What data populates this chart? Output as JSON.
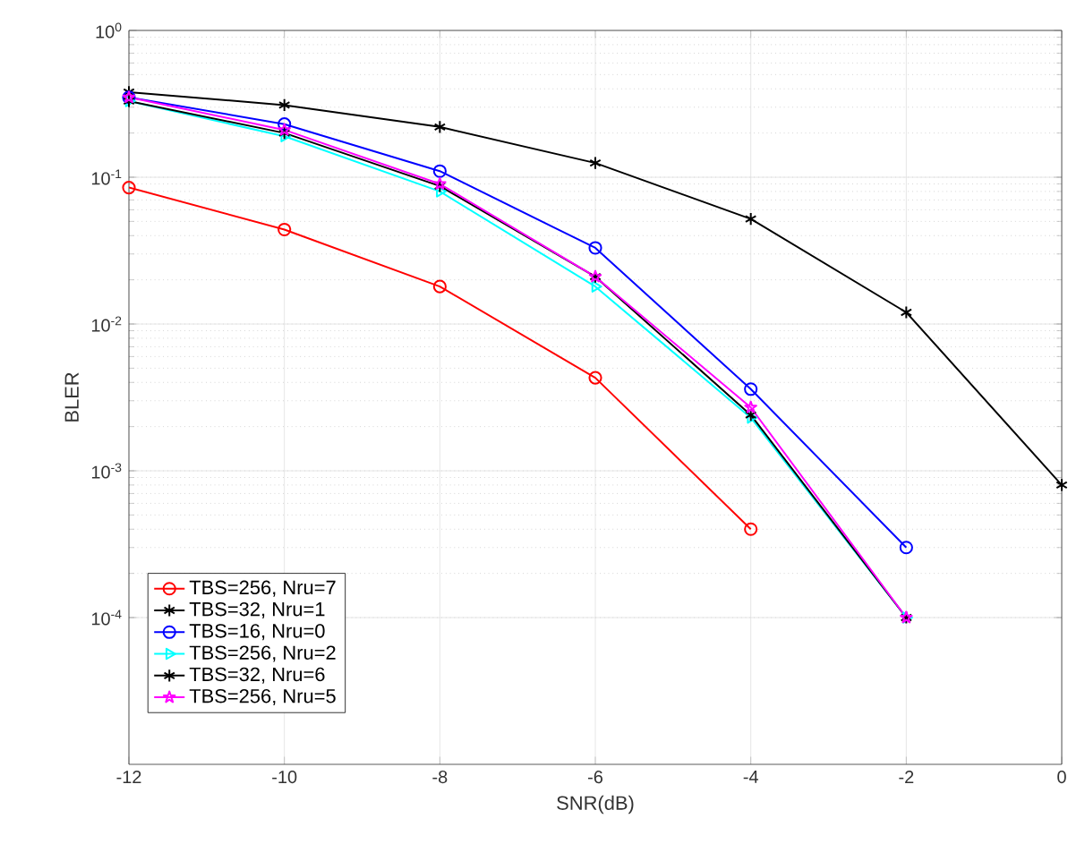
{
  "chart_data": {
    "type": "line",
    "xlabel": "SNR(dB)",
    "ylabel": "BLER",
    "log": "y",
    "grid": true,
    "legend": "bottom left",
    "xlim": [
      -12,
      0
    ],
    "xticks": [
      -12,
      -10,
      -8,
      -6,
      -4,
      -2,
      0
    ],
    "ylim": [
      1e-05,
      1
    ],
    "yticks": [
      {
        "value": 0.0001,
        "label": "10$^{-4}$"
      },
      {
        "value": 0.001,
        "label": "10$^{-3}$"
      },
      {
        "value": 0.01,
        "label": "10$^{-2}$"
      },
      {
        "value": 0.1,
        "label": "10$^{-1}$"
      },
      {
        "value": 1,
        "label": "10$^{0}$"
      }
    ],
    "x": [
      -12,
      -10,
      -8,
      -6,
      -4,
      -2,
      0
    ],
    "series": [
      {
        "name": "TBS=256, Nru=7",
        "color": "#ff0000",
        "marker": "circle",
        "values": [
          0.085,
          0.044,
          0.018,
          0.0043,
          0.0004,
          null,
          null
        ]
      },
      {
        "name": "TBS=32, Nru=1",
        "color": "#000000",
        "marker": "cross",
        "values": [
          0.38,
          0.31,
          0.22,
          0.125,
          0.052,
          0.012,
          0.0008
        ]
      },
      {
        "name": "TBS=16, Nru=0",
        "color": "#0000ff",
        "marker": "circle",
        "values": [
          0.35,
          0.23,
          0.11,
          0.033,
          0.0036,
          0.0003,
          null
        ]
      },
      {
        "name": "TBS=256, Nru=2",
        "color": "#00ffff",
        "marker": "triangle",
        "values": [
          0.33,
          0.19,
          0.08,
          0.018,
          0.0023,
          0.0001,
          null
        ]
      },
      {
        "name": "TBS=32, Nru=6",
        "color": "#000000",
        "marker": "cross",
        "values": [
          0.33,
          0.2,
          0.087,
          0.021,
          0.0024,
          0.0001,
          null
        ]
      },
      {
        "name": "TBS=256, Nru=5",
        "color": "#ff00ff",
        "marker": "star",
        "values": [
          0.35,
          0.21,
          0.09,
          0.021,
          0.0027,
          0.0001,
          null
        ]
      }
    ]
  }
}
